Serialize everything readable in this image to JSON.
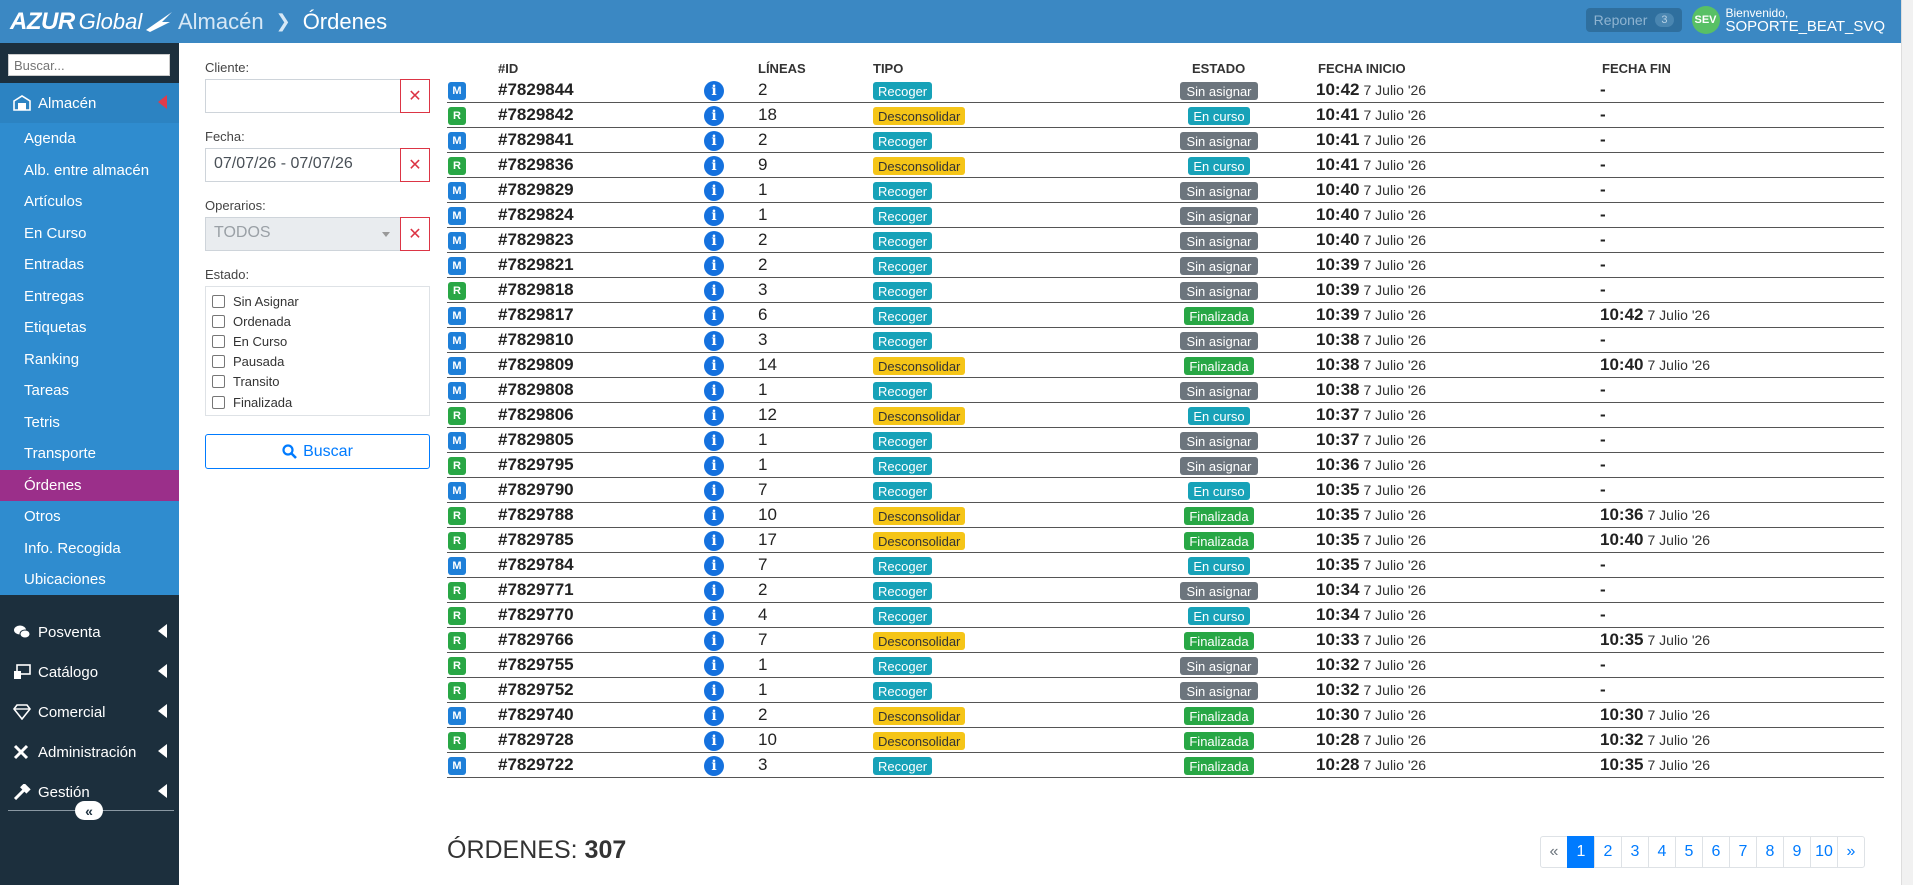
{
  "header": {
    "logo_brand": "AZUR",
    "logo_suffix": "Global",
    "breadcrumb_parent": "Almacén",
    "breadcrumb_current": "Órdenes",
    "reponer_label": "Reponer",
    "reponer_count": "3",
    "avatar_initials": "SEV",
    "welcome_text": "Bienvenido,",
    "username": "SOPORTE_BEAT_SVQ"
  },
  "sidebar": {
    "search_placeholder": "Buscar...",
    "groups": [
      {
        "label": "Almacén",
        "icon": "warehouse-icon",
        "active": true
      },
      {
        "label": "Posventa",
        "icon": "chat-icon"
      },
      {
        "label": "Catálogo",
        "icon": "catalog-icon"
      },
      {
        "label": "Comercial",
        "icon": "diamond-icon"
      },
      {
        "label": "Administración",
        "icon": "tools-icon"
      },
      {
        "label": "Gestión",
        "icon": "hammer-icon"
      }
    ],
    "almacen_items": [
      "Agenda",
      "Alb. entre almacén",
      "Artículos",
      "En Curso",
      "Entradas",
      "Entregas",
      "Etiquetas",
      "Ranking",
      "Tareas",
      "Tetris",
      "Transporte",
      "Órdenes",
      "Otros",
      "Info. Recogida",
      "Ubicaciones"
    ],
    "selected_item": "Órdenes"
  },
  "filters": {
    "cliente_label": "Cliente:",
    "cliente_value": "",
    "fecha_label": "Fecha:",
    "fecha_value": "07/07/26 - 07/07/26",
    "operarios_label": "Operarios:",
    "operarios_value": "TODOS",
    "estado_label": "Estado:",
    "estado_options": [
      "Sin Asignar",
      "Ordenada",
      "En Curso",
      "Pausada",
      "Transito",
      "Finalizada"
    ],
    "search_button": "Buscar"
  },
  "table": {
    "headers": {
      "id": "#ID",
      "lineas": "LÍNEAS",
      "tipo": "TIPO",
      "estado": "ESTADO",
      "fecha_inicio": "FECHA INICIO",
      "fecha_fin": "FECHA FIN"
    },
    "rows": [
      {
        "src": "M",
        "id": "#7829844",
        "lineas": "2",
        "tipo": "Recoger",
        "estado": "Sin asignar",
        "fi_time": "10:42",
        "fi_date": "7 Julio '26",
        "ff_time": "-",
        "ff_date": ""
      },
      {
        "src": "R",
        "id": "#7829842",
        "lineas": "18",
        "tipo": "Desconsolidar",
        "estado": "En curso",
        "fi_time": "10:41",
        "fi_date": "7 Julio '26",
        "ff_time": "-",
        "ff_date": ""
      },
      {
        "src": "M",
        "id": "#7829841",
        "lineas": "2",
        "tipo": "Recoger",
        "estado": "Sin asignar",
        "fi_time": "10:41",
        "fi_date": "7 Julio '26",
        "ff_time": "-",
        "ff_date": ""
      },
      {
        "src": "R",
        "id": "#7829836",
        "lineas": "9",
        "tipo": "Desconsolidar",
        "estado": "En curso",
        "fi_time": "10:41",
        "fi_date": "7 Julio '26",
        "ff_time": "-",
        "ff_date": ""
      },
      {
        "src": "M",
        "id": "#7829829",
        "lineas": "1",
        "tipo": "Recoger",
        "estado": "Sin asignar",
        "fi_time": "10:40",
        "fi_date": "7 Julio '26",
        "ff_time": "-",
        "ff_date": ""
      },
      {
        "src": "M",
        "id": "#7829824",
        "lineas": "1",
        "tipo": "Recoger",
        "estado": "Sin asignar",
        "fi_time": "10:40",
        "fi_date": "7 Julio '26",
        "ff_time": "-",
        "ff_date": ""
      },
      {
        "src": "M",
        "id": "#7829823",
        "lineas": "2",
        "tipo": "Recoger",
        "estado": "Sin asignar",
        "fi_time": "10:40",
        "fi_date": "7 Julio '26",
        "ff_time": "-",
        "ff_date": ""
      },
      {
        "src": "M",
        "id": "#7829821",
        "lineas": "2",
        "tipo": "Recoger",
        "estado": "Sin asignar",
        "fi_time": "10:39",
        "fi_date": "7 Julio '26",
        "ff_time": "-",
        "ff_date": ""
      },
      {
        "src": "R",
        "id": "#7829818",
        "lineas": "3",
        "tipo": "Recoger",
        "estado": "Sin asignar",
        "fi_time": "10:39",
        "fi_date": "7 Julio '26",
        "ff_time": "-",
        "ff_date": ""
      },
      {
        "src": "M",
        "id": "#7829817",
        "lineas": "6",
        "tipo": "Recoger",
        "estado": "Finalizada",
        "fi_time": "10:39",
        "fi_date": "7 Julio '26",
        "ff_time": "10:42",
        "ff_date": "7 Julio '26"
      },
      {
        "src": "M",
        "id": "#7829810",
        "lineas": "3",
        "tipo": "Recoger",
        "estado": "Sin asignar",
        "fi_time": "10:38",
        "fi_date": "7 Julio '26",
        "ff_time": "-",
        "ff_date": ""
      },
      {
        "src": "M",
        "id": "#7829809",
        "lineas": "14",
        "tipo": "Desconsolidar",
        "estado": "Finalizada",
        "fi_time": "10:38",
        "fi_date": "7 Julio '26",
        "ff_time": "10:40",
        "ff_date": "7 Julio '26"
      },
      {
        "src": "M",
        "id": "#7829808",
        "lineas": "1",
        "tipo": "Recoger",
        "estado": "Sin asignar",
        "fi_time": "10:38",
        "fi_date": "7 Julio '26",
        "ff_time": "-",
        "ff_date": ""
      },
      {
        "src": "R",
        "id": "#7829806",
        "lineas": "12",
        "tipo": "Desconsolidar",
        "estado": "En curso",
        "fi_time": "10:37",
        "fi_date": "7 Julio '26",
        "ff_time": "-",
        "ff_date": ""
      },
      {
        "src": "M",
        "id": "#7829805",
        "lineas": "1",
        "tipo": "Recoger",
        "estado": "Sin asignar",
        "fi_time": "10:37",
        "fi_date": "7 Julio '26",
        "ff_time": "-",
        "ff_date": ""
      },
      {
        "src": "R",
        "id": "#7829795",
        "lineas": "1",
        "tipo": "Recoger",
        "estado": "Sin asignar",
        "fi_time": "10:36",
        "fi_date": "7 Julio '26",
        "ff_time": "-",
        "ff_date": ""
      },
      {
        "src": "M",
        "id": "#7829790",
        "lineas": "7",
        "tipo": "Recoger",
        "estado": "En curso",
        "fi_time": "10:35",
        "fi_date": "7 Julio '26",
        "ff_time": "-",
        "ff_date": ""
      },
      {
        "src": "R",
        "id": "#7829788",
        "lineas": "10",
        "tipo": "Desconsolidar",
        "estado": "Finalizada",
        "fi_time": "10:35",
        "fi_date": "7 Julio '26",
        "ff_time": "10:36",
        "ff_date": "7 Julio '26"
      },
      {
        "src": "R",
        "id": "#7829785",
        "lineas": "17",
        "tipo": "Desconsolidar",
        "estado": "Finalizada",
        "fi_time": "10:35",
        "fi_date": "7 Julio '26",
        "ff_time": "10:40",
        "ff_date": "7 Julio '26"
      },
      {
        "src": "M",
        "id": "#7829784",
        "lineas": "7",
        "tipo": "Recoger",
        "estado": "En curso",
        "fi_time": "10:35",
        "fi_date": "7 Julio '26",
        "ff_time": "-",
        "ff_date": ""
      },
      {
        "src": "R",
        "id": "#7829771",
        "lineas": "2",
        "tipo": "Recoger",
        "estado": "Sin asignar",
        "fi_time": "10:34",
        "fi_date": "7 Julio '26",
        "ff_time": "-",
        "ff_date": ""
      },
      {
        "src": "R",
        "id": "#7829770",
        "lineas": "4",
        "tipo": "Recoger",
        "estado": "En curso",
        "fi_time": "10:34",
        "fi_date": "7 Julio '26",
        "ff_time": "-",
        "ff_date": ""
      },
      {
        "src": "R",
        "id": "#7829766",
        "lineas": "7",
        "tipo": "Desconsolidar",
        "estado": "Finalizada",
        "fi_time": "10:33",
        "fi_date": "7 Julio '26",
        "ff_time": "10:35",
        "ff_date": "7 Julio '26"
      },
      {
        "src": "R",
        "id": "#7829755",
        "lineas": "1",
        "tipo": "Recoger",
        "estado": "Sin asignar",
        "fi_time": "10:32",
        "fi_date": "7 Julio '26",
        "ff_time": "-",
        "ff_date": ""
      },
      {
        "src": "R",
        "id": "#7829752",
        "lineas": "1",
        "tipo": "Recoger",
        "estado": "Sin asignar",
        "fi_time": "10:32",
        "fi_date": "7 Julio '26",
        "ff_time": "-",
        "ff_date": ""
      },
      {
        "src": "M",
        "id": "#7829740",
        "lineas": "2",
        "tipo": "Desconsolidar",
        "estado": "Finalizada",
        "fi_time": "10:30",
        "fi_date": "7 Julio '26",
        "ff_time": "10:30",
        "ff_date": "7 Julio '26"
      },
      {
        "src": "R",
        "id": "#7829728",
        "lineas": "10",
        "tipo": "Desconsolidar",
        "estado": "Finalizada",
        "fi_time": "10:28",
        "fi_date": "7 Julio '26",
        "ff_time": "10:32",
        "ff_date": "7 Julio '26"
      },
      {
        "src": "M",
        "id": "#7829722",
        "lineas": "3",
        "tipo": "Recoger",
        "estado": "Finalizada",
        "fi_time": "10:28",
        "fi_date": "7 Julio '26",
        "ff_time": "10:35",
        "ff_date": "7 Julio '26"
      }
    ]
  },
  "footer": {
    "total_label": "ÓRDENES:",
    "total_value": "307",
    "pagination": [
      "«",
      "1",
      "2",
      "3",
      "4",
      "5",
      "6",
      "7",
      "8",
      "9",
      "10",
      "»"
    ],
    "current_page": "1"
  },
  "colors": {
    "topbar": "#3b88c3",
    "sidebar_dark": "#1c2f3d",
    "sidebar_sub": "#2f8ccf",
    "selected_item": "#9b2f8a",
    "recoger": "#17a2b8",
    "desconsolidar": "#f5c518",
    "sin_asignar": "#6c757d",
    "en_curso": "#17a2b8",
    "finalizada": "#28a745",
    "source_M": "#1e7fd8",
    "source_R": "#29a745"
  }
}
